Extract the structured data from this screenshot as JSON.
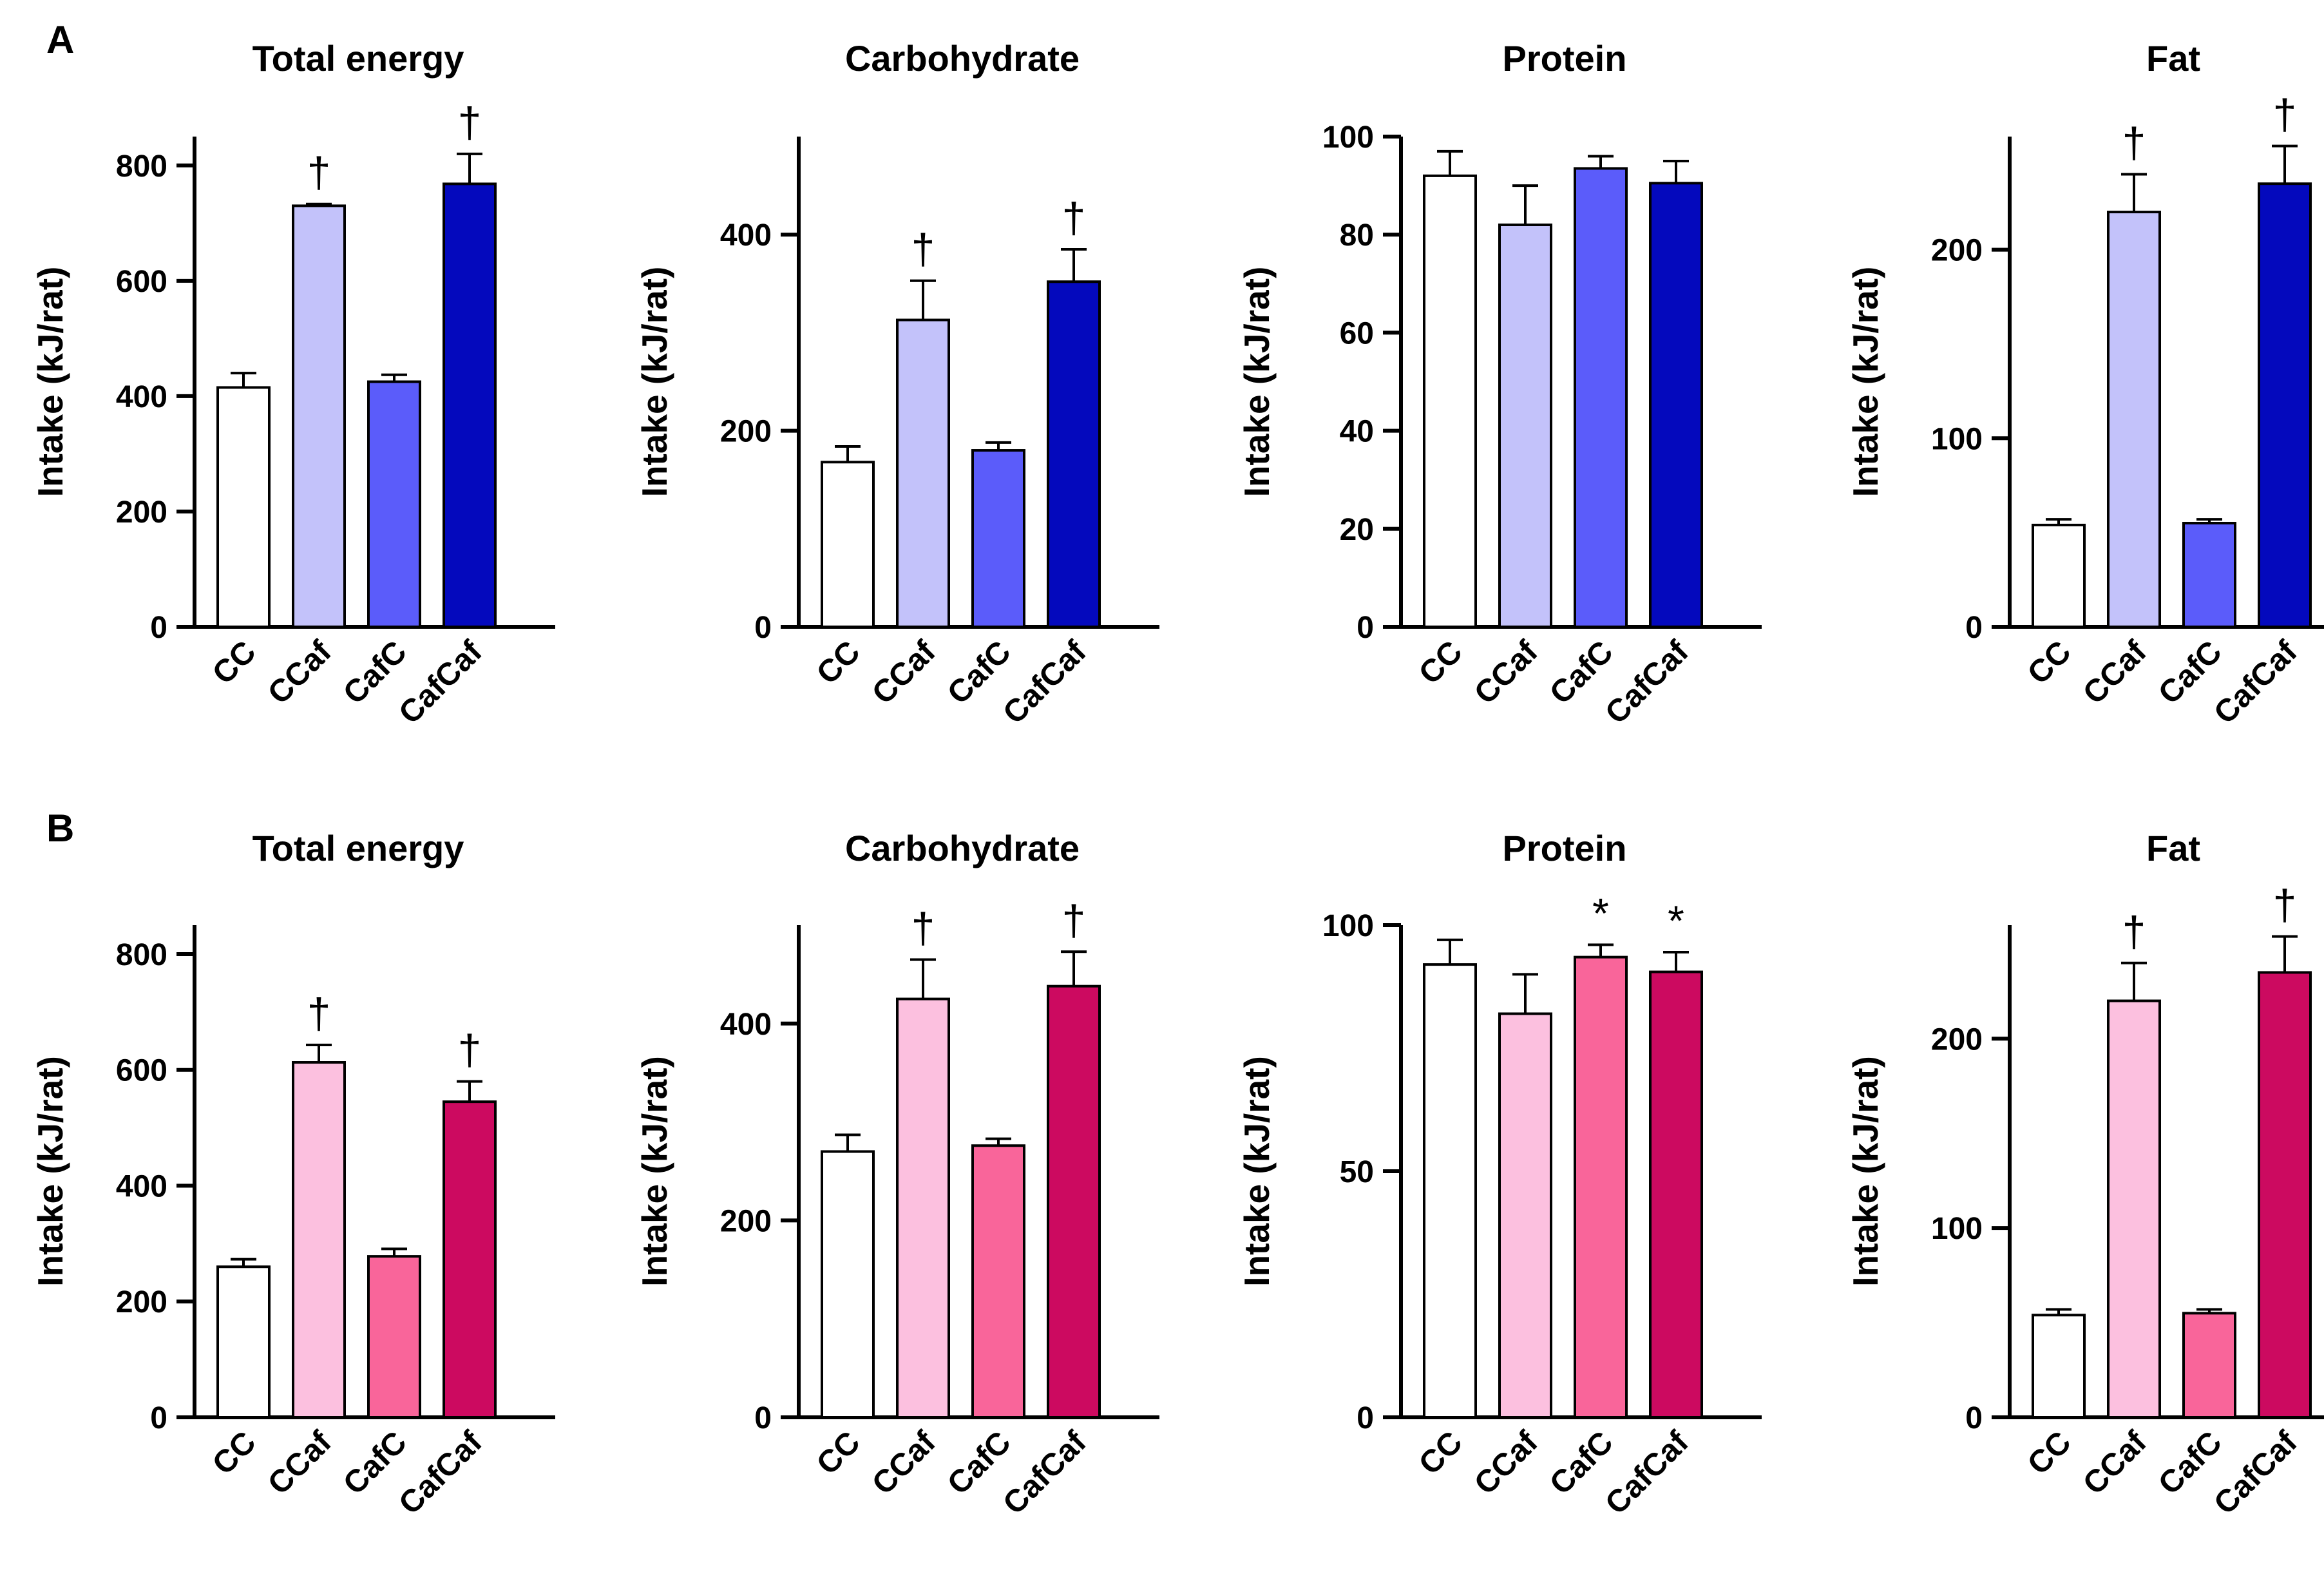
{
  "figure": {
    "panels": [
      {
        "label": "A",
        "colors": [
          "#ffffff",
          "#c3c2fa",
          "#5b5cfa",
          "#0409bd"
        ]
      },
      {
        "label": "B",
        "colors": [
          "#ffffff",
          "#fcc0df",
          "#f9659a",
          "#cc0a60"
        ]
      }
    ]
  },
  "chart_data": [
    {
      "type": "bar",
      "panel": "A",
      "title": "Total energy",
      "ylabel": "Intake (kJ/rat)",
      "categories": [
        "CC",
        "CCaf",
        "CafC",
        "CafCaf"
      ],
      "values": [
        415,
        730,
        425,
        768
      ],
      "errors": [
        25,
        3,
        12,
        52
      ],
      "annotations": [
        "",
        "†",
        "",
        "†"
      ],
      "ylim": [
        0,
        850
      ],
      "yticks": [
        0,
        200,
        400,
        600,
        800
      ]
    },
    {
      "type": "bar",
      "panel": "A",
      "title": "Carbohydrate",
      "ylabel": "Intake (kJ/rat)",
      "categories": [
        "CC",
        "CCaf",
        "CafC",
        "CafCaf"
      ],
      "values": [
        168,
        313,
        180,
        352
      ],
      "errors": [
        16,
        40,
        8,
        33
      ],
      "annotations": [
        "",
        "†",
        "",
        "†"
      ],
      "ylim": [
        0,
        500
      ],
      "yticks": [
        0,
        200,
        400
      ]
    },
    {
      "type": "bar",
      "panel": "A",
      "title": "Protein",
      "ylabel": "Intake (kJ/rat)",
      "categories": [
        "CC",
        "CCaf",
        "CafC",
        "CafCaf"
      ],
      "values": [
        92,
        82,
        93.5,
        90.5
      ],
      "errors": [
        5,
        8,
        2.5,
        4.5
      ],
      "annotations": [
        "",
        "",
        "",
        ""
      ],
      "ylim": [
        0,
        100
      ],
      "yticks": [
        0,
        20,
        40,
        60,
        80,
        100
      ]
    },
    {
      "type": "bar",
      "panel": "A",
      "title": "Fat",
      "ylabel": "Intake (kJ/rat)",
      "categories": [
        "CC",
        "CCaf",
        "CafC",
        "CafCaf"
      ],
      "values": [
        54,
        220,
        55,
        235
      ],
      "errors": [
        3,
        20,
        2,
        20
      ],
      "annotations": [
        "",
        "†",
        "",
        "†"
      ],
      "ylim": [
        0,
        260
      ],
      "yticks": [
        0,
        100,
        200
      ]
    },
    {
      "type": "bar",
      "panel": "B",
      "title": "Total energy",
      "ylabel": "Intake (kJ/rat)",
      "categories": [
        "CC",
        "CCaf",
        "CafC",
        "CafCaf"
      ],
      "values": [
        260,
        613,
        278,
        545
      ],
      "errors": [
        13,
        30,
        13,
        35
      ],
      "annotations": [
        "",
        "†",
        "",
        "†"
      ],
      "ylim": [
        0,
        850
      ],
      "yticks": [
        0,
        200,
        400,
        600,
        800
      ]
    },
    {
      "type": "bar",
      "panel": "B",
      "title": "Carbohydrate",
      "ylabel": "Intake (kJ/rat)",
      "categories": [
        "CC",
        "CCaf",
        "CafC",
        "CafCaf"
      ],
      "values": [
        270,
        425,
        276,
        438
      ],
      "errors": [
        17,
        40,
        7,
        35
      ],
      "annotations": [
        "",
        "†",
        "",
        "†"
      ],
      "ylim": [
        0,
        500
      ],
      "yticks": [
        0,
        200,
        400
      ]
    },
    {
      "type": "bar",
      "panel": "B",
      "title": "Protein",
      "ylabel": "Intake (kJ/rat)",
      "categories": [
        "CC",
        "CCaf",
        "CafC",
        "CafCaf"
      ],
      "values": [
        92,
        82,
        93.5,
        90.5
      ],
      "errors": [
        5,
        8,
        2.5,
        4
      ],
      "annotations": [
        "",
        "",
        "*",
        "*"
      ],
      "ylim": [
        0,
        100
      ],
      "yticks": [
        0,
        50,
        100
      ]
    },
    {
      "type": "bar",
      "panel": "B",
      "title": "Fat",
      "ylabel": "Intake (kJ/rat)",
      "categories": [
        "CC",
        "CCaf",
        "CafC",
        "CafCaf"
      ],
      "values": [
        54,
        220,
        55,
        235
      ],
      "errors": [
        3,
        20,
        2,
        19
      ],
      "annotations": [
        "",
        "†",
        "",
        "†"
      ],
      "ylim": [
        0,
        260
      ],
      "yticks": [
        0,
        100,
        200
      ]
    }
  ]
}
